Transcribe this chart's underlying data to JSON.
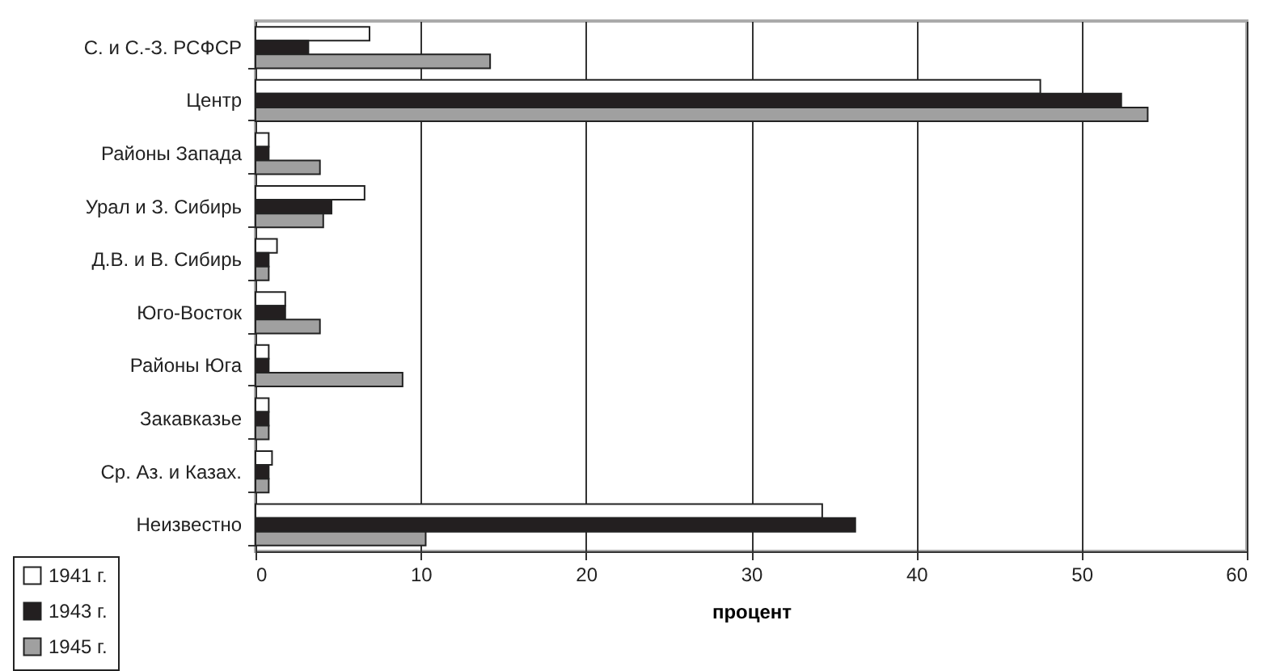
{
  "chart_data": {
    "type": "bar",
    "orientation": "horizontal",
    "xlabel": "процент",
    "categories": [
      "С. и С.-З. РСФСР",
      "Центр",
      "Районы Запада",
      "Урал и З. Сибирь",
      "Д.В. и В. Сибирь",
      "Юго-Восток",
      "Районы Юга",
      "Закавказье",
      "Ср. Аз. и Казах.",
      "Неизвестно"
    ],
    "series": [
      {
        "name": "1941 г.",
        "color": "#ffffff",
        "values": [
          6.9,
          47.5,
          0.8,
          6.6,
          1.3,
          1.8,
          0.8,
          0.8,
          1.0,
          34.3
        ]
      },
      {
        "name": "1943 г.",
        "color": "#231f20",
        "values": [
          3.2,
          52.4,
          0.8,
          4.6,
          0.8,
          1.8,
          0.8,
          0.8,
          0.8,
          36.3
        ]
      },
      {
        "name": "1945 г.",
        "color": "#a0a0a0",
        "values": [
          14.2,
          54.0,
          3.9,
          4.1,
          0.8,
          3.9,
          8.9,
          0.8,
          0.8,
          10.3
        ]
      }
    ],
    "xlim": [
      0,
      60
    ],
    "xticks": [
      0,
      10,
      20,
      30,
      40,
      50,
      60
    ],
    "grid": "x",
    "legend": "bottom left"
  }
}
